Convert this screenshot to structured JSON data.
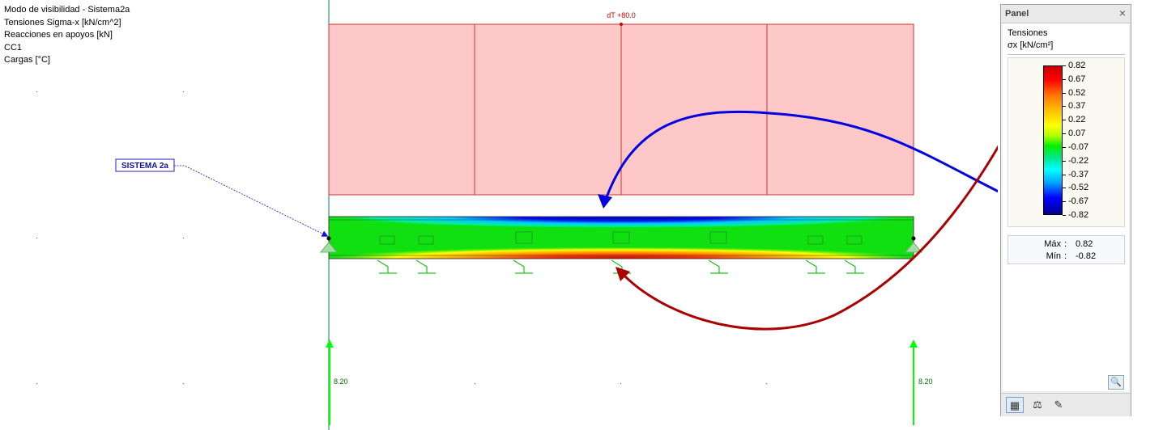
{
  "info": {
    "lines": [
      "Modo de visibilidad - Sistema2a",
      "Tensiones Sigma-x [kN/cm^2]",
      "Reacciones en apoyos [kN]",
      "CC1",
      "Cargas [°C]"
    ]
  },
  "scene": {
    "load_label": "dT +80.0",
    "system_label": "SISTEMA 2a",
    "reaction_left": "8.20",
    "reaction_right": "8.20",
    "load_color": "#ffc8c8",
    "load_border": "#cc0000",
    "support_color": "#00cc00",
    "reaction_color": "#00ff00",
    "system_label_color": "#0000cc"
  },
  "panel": {
    "title": "Panel",
    "legend_title": "Tensiones",
    "legend_unit": "σx [kN/cm²]",
    "scale": [
      "0.82",
      "0.67",
      "0.52",
      "0.37",
      "0.22",
      "0.07",
      "-0.07",
      "-0.22",
      "-0.37",
      "-0.52",
      "-0.67",
      "-0.82"
    ],
    "max_label": "Máx",
    "max_value": "0.82",
    "min_label": "Mín",
    "min_value": "-0.82",
    "colon": ":",
    "icons": {
      "close": "close-icon",
      "zoom": "zoom-legend-icon",
      "colors": "color-scale-icon",
      "balance": "balance-icon",
      "tools": "tools-icon"
    }
  }
}
